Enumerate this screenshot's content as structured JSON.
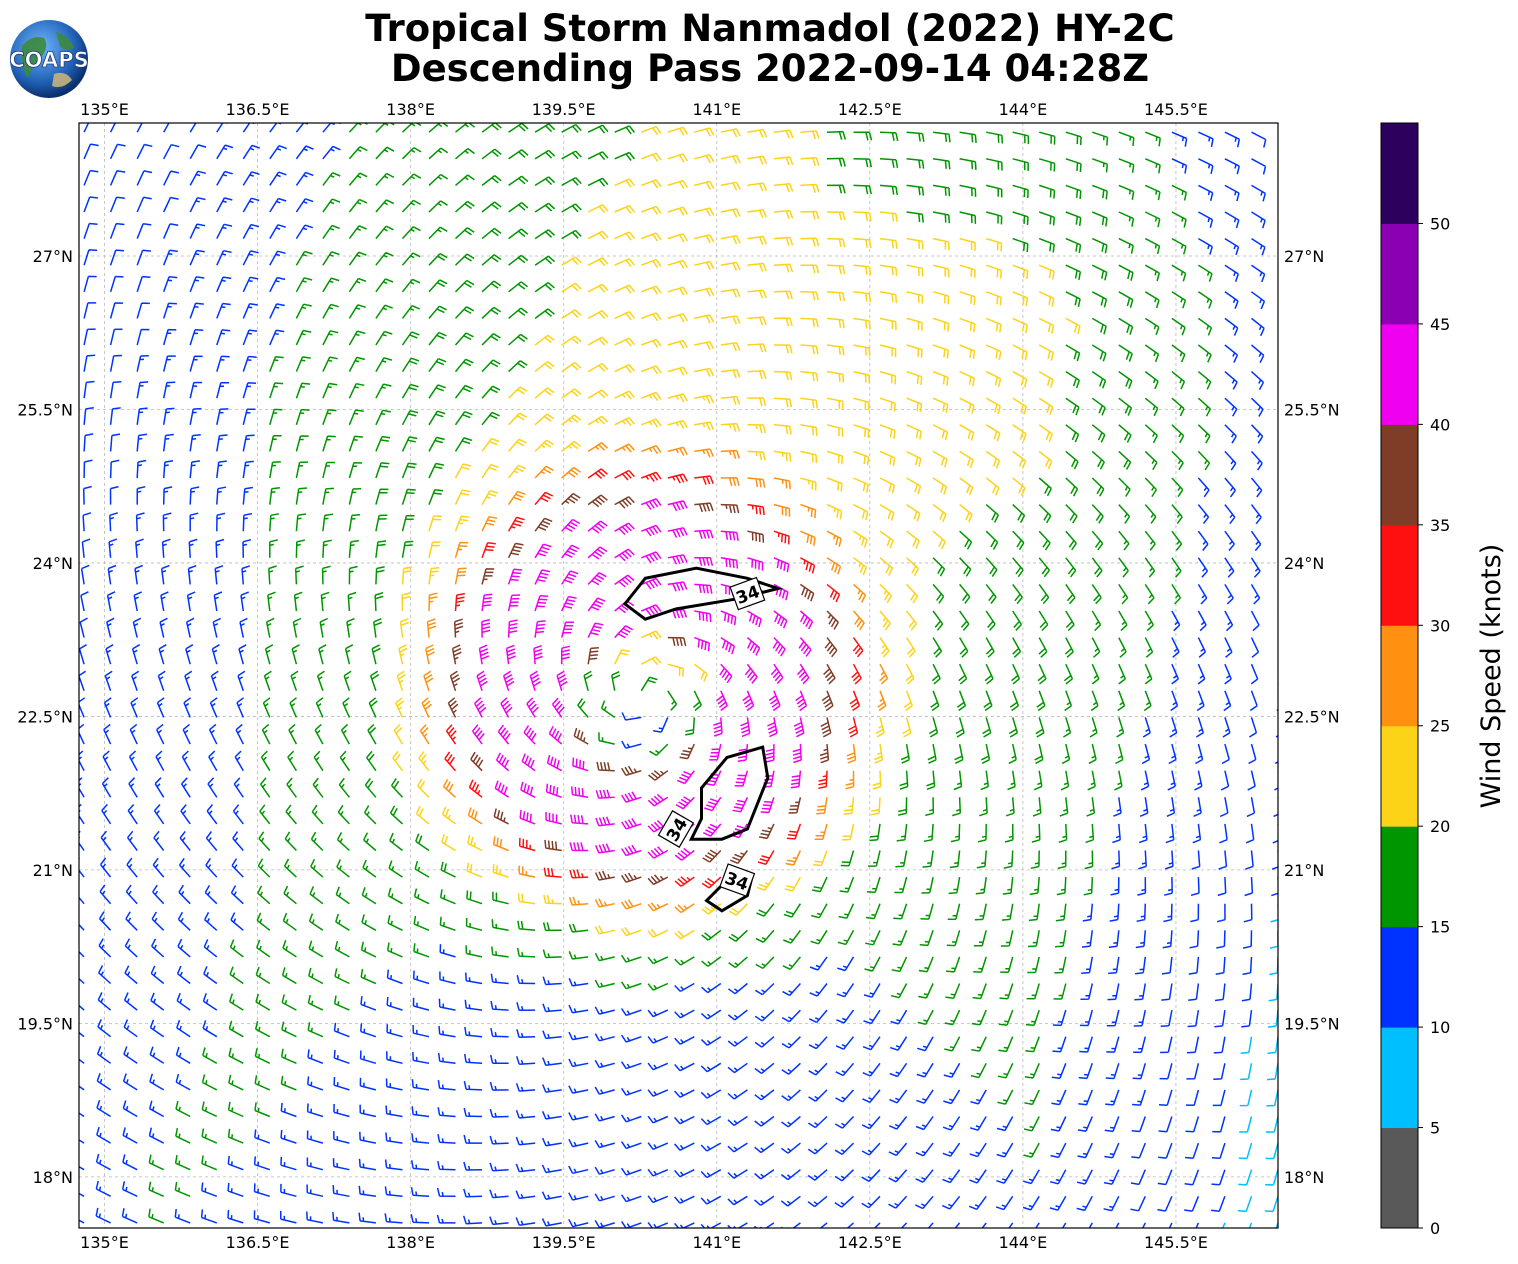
{
  "title_line1": "Tropical Storm Nanmadol (2022) HY-2C",
  "title_line2": "Descending Pass 2022-09-14 04:28Z",
  "logo_text": "COAPS",
  "colorbar": {
    "label": "Wind Speed (knots)",
    "bins": [
      {
        "min": 0,
        "max": 5,
        "color": "#595959"
      },
      {
        "min": 5,
        "max": 10,
        "color": "#00bfff"
      },
      {
        "min": 10,
        "max": 15,
        "color": "#0033ff"
      },
      {
        "min": 15,
        "max": 20,
        "color": "#009600"
      },
      {
        "min": 20,
        "max": 25,
        "color": "#fcd316"
      },
      {
        "min": 25,
        "max": 30,
        "color": "#ff9010"
      },
      {
        "min": 30,
        "max": 35,
        "color": "#ff1010"
      },
      {
        "min": 35,
        "max": 40,
        "color": "#7f3c26"
      },
      {
        "min": 40,
        "max": 45,
        "color": "#f000f0"
      },
      {
        "min": 45,
        "max": 50,
        "color": "#8c00b4"
      },
      {
        "min": 50,
        "max": 55,
        "color": "#2c005c"
      }
    ],
    "tick_labels": [
      "0",
      "5",
      "10",
      "15",
      "20",
      "25",
      "30",
      "35",
      "40",
      "45",
      "50"
    ]
  },
  "map": {
    "lon_range": [
      134.75,
      146.5
    ],
    "lat_range": [
      17.5,
      28.3
    ],
    "lon_ticks": [
      135,
      136.5,
      138,
      139.5,
      141,
      142.5,
      144,
      145.5
    ],
    "lon_labels": [
      "135°E",
      "136.5°E",
      "138°E",
      "139.5°E",
      "141°E",
      "142.5°E",
      "144°E",
      "145.5°E"
    ],
    "lat_ticks": [
      18,
      19.5,
      21,
      22.5,
      24,
      25.5,
      27
    ],
    "lat_labels": [
      "18°N",
      "19.5°N",
      "21°N",
      "22.5°N",
      "24°N",
      "25.5°N",
      "27°N"
    ],
    "storm_center": {
      "lon": 140.3,
      "lat": 22.7
    },
    "contour_label": "34",
    "contours": [
      [
        [
          140.1,
          23.6
        ],
        [
          140.3,
          23.85
        ],
        [
          140.8,
          23.95
        ],
        [
          141.3,
          23.85
        ],
        [
          141.6,
          23.75
        ],
        [
          141.2,
          23.65
        ],
        [
          140.6,
          23.55
        ],
        [
          140.3,
          23.45
        ],
        [
          140.1,
          23.6
        ]
      ],
      [
        [
          140.85,
          21.8
        ],
        [
          141.1,
          22.1
        ],
        [
          141.45,
          22.2
        ],
        [
          141.5,
          21.9
        ],
        [
          141.3,
          21.4
        ],
        [
          141.05,
          21.3
        ],
        [
          140.75,
          21.3
        ],
        [
          140.85,
          21.5
        ],
        [
          140.85,
          21.8
        ]
      ],
      [
        [
          140.9,
          20.7
        ],
        [
          141.1,
          20.9
        ],
        [
          141.35,
          20.95
        ],
        [
          141.3,
          20.75
        ],
        [
          141.05,
          20.6
        ],
        [
          140.9,
          20.7
        ]
      ]
    ],
    "contour_label_positions": [
      {
        "lon": 141.3,
        "lat": 23.7,
        "angle": -20
      },
      {
        "lon": 140.6,
        "lat": 21.4,
        "angle": -60
      },
      {
        "lon": 141.2,
        "lat": 20.9,
        "angle": 20
      }
    ]
  }
}
